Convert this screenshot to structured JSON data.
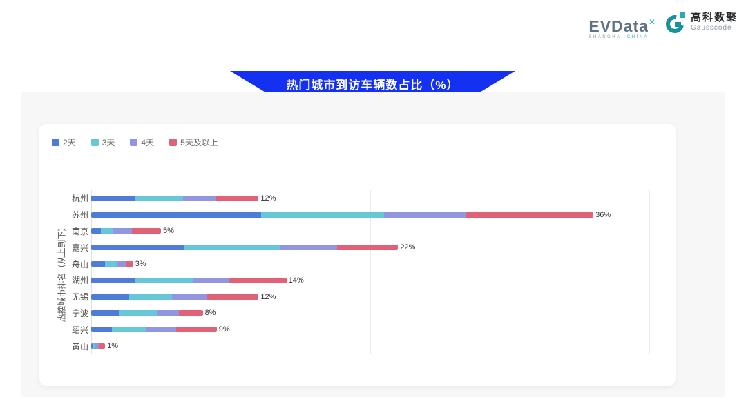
{
  "header": {
    "evdata_logo": {
      "word": "EVData",
      "sup_mark": "✕",
      "sub_left": "SHANGHAI ",
      "sub_right": "CHINA"
    },
    "gausscode_logo": {
      "cn_name": "高科数聚",
      "en_name": "Gausscode"
    }
  },
  "banner": {
    "title": "热门城市到访车辆数占比（%）",
    "color": "#1430f0"
  },
  "chart_data": {
    "type": "bar",
    "orientation": "horizontal",
    "stacked": true,
    "title": "热门城市到访车辆数占比（%）",
    "ylabel": "热搜城市排名（从上到下）",
    "xlabel": "",
    "xlim": [
      0,
      40
    ],
    "grid": true,
    "gridline_values": [
      0,
      10,
      20,
      30,
      40
    ],
    "legend_position": "top-left",
    "categories": [
      "杭州",
      "苏州",
      "南京",
      "嘉兴",
      "舟山",
      "湖州",
      "无锡",
      "宁波",
      "绍兴",
      "黄山"
    ],
    "series": [
      {
        "name": "2天",
        "color": "#4f7cd9",
        "values": [
          3.1,
          12.2,
          0.7,
          6.7,
          1.0,
          3.1,
          2.7,
          2.0,
          1.5,
          0.15
        ]
      },
      {
        "name": "3天",
        "color": "#66c7d7",
        "values": [
          3.5,
          8.8,
          0.9,
          6.8,
          0.9,
          4.2,
          3.1,
          2.7,
          2.4,
          0.1
        ]
      },
      {
        "name": "4天",
        "color": "#9295e2",
        "values": [
          2.3,
          5.9,
          1.3,
          4.1,
          0.6,
          2.6,
          2.5,
          1.6,
          2.2,
          0.3
        ]
      },
      {
        "name": "5天及以上",
        "color": "#df6277",
        "values": [
          3.1,
          9.1,
          2.1,
          4.4,
          0.5,
          4.1,
          3.7,
          1.7,
          2.9,
          0.45
        ]
      }
    ],
    "totals": [
      12,
      36,
      5,
      22,
      3,
      14,
      12,
      8,
      9,
      1
    ],
    "total_labels": [
      "12%",
      "36%",
      "5%",
      "22%",
      "3%",
      "14%",
      "12%",
      "8%",
      "9%",
      "1%"
    ]
  }
}
